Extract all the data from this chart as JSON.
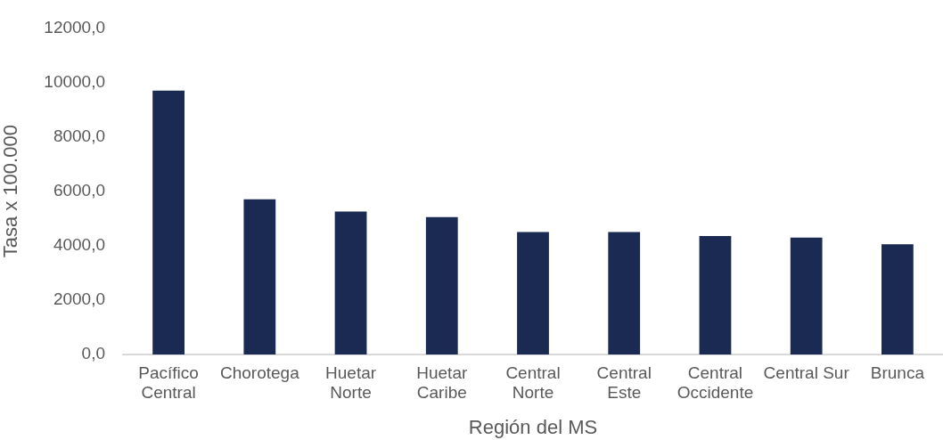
{
  "chart_data": {
    "type": "bar",
    "xlabel": "Región del MS",
    "ylabel": "Tasa x 100.000",
    "categories": [
      "Pacífico Central",
      "Chorotega",
      "Huetar Norte",
      "Huetar Caribe",
      "Central Norte",
      "Central Este",
      "Central Occidente",
      "Central Sur",
      "Brunca"
    ],
    "values": [
      9700,
      5700,
      5250,
      5050,
      4500,
      4500,
      4350,
      4300,
      4050
    ],
    "color": "#1a2a52",
    "ylim": [
      0,
      12000
    ],
    "yticks": [
      {
        "value": 0,
        "label": "0,0"
      },
      {
        "value": 2000,
        "label": "2000,0"
      },
      {
        "value": 4000,
        "label": "4000,0"
      },
      {
        "value": 6000,
        "label": "6000,0"
      },
      {
        "value": 8000,
        "label": "8000,0"
      },
      {
        "value": 10000,
        "label": "10000,0"
      },
      {
        "value": 12000,
        "label": "12000,0"
      }
    ]
  }
}
